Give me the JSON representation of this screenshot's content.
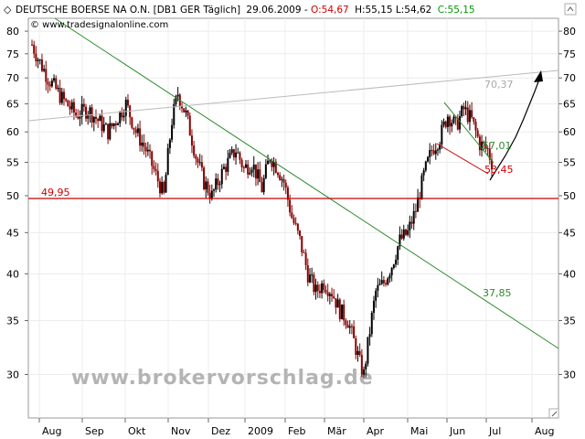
{
  "header": {
    "marker": "◇",
    "instrument": "DEUTSCHE BOERSE NA O.N. [DB1 GER  Täglich]",
    "date": "29.06.2009",
    "open": "O:54,67",
    "hl": "H:55,15 L:54,62",
    "close": "C:55,15",
    "copyright": "© www.tradesignalonline.com"
  },
  "watermark": "www.brokervorschlag.de",
  "colors": {
    "up": "#000000",
    "down": "#8b0000",
    "trend": "#2e8b2e",
    "support": "#cc0000",
    "watermark": "#b0b0b0",
    "open": "#cc0000",
    "close": "#009900"
  },
  "chart_data": {
    "type": "candlestick",
    "y_scale": "log",
    "ylim": [
      26.5,
      83
    ],
    "y_ticks": [
      30,
      35,
      40,
      45,
      50,
      55,
      60,
      65,
      70,
      75,
      80
    ],
    "x_labels": [
      "Aug",
      "Sep",
      "Okt",
      "Nov",
      "Dez",
      "2009",
      "Feb",
      "Mär",
      "Apr",
      "Mai",
      "Jun",
      "Jul",
      "Aug"
    ],
    "horizontal_line": {
      "value": 49.95,
      "label": "49,95"
    },
    "annotations": [
      {
        "label": "70,37",
        "color": "#aaaaaa"
      },
      {
        "label": "57,01",
        "color": "#2e8b2e"
      },
      {
        "label": "53,45",
        "color": "#cc0000"
      },
      {
        "label": "37,85",
        "color": "#2e8b2e"
      }
    ],
    "anchors": [
      [
        0,
        77
      ],
      [
        3,
        74
      ],
      [
        8,
        70
      ],
      [
        15,
        66
      ],
      [
        22,
        63
      ],
      [
        28,
        64
      ],
      [
        33,
        62
      ],
      [
        38,
        60
      ],
      [
        42,
        62
      ],
      [
        47,
        65
      ],
      [
        52,
        60
      ],
      [
        57,
        57
      ],
      [
        62,
        53
      ],
      [
        66,
        50
      ],
      [
        70,
        62
      ],
      [
        73,
        67
      ],
      [
        77,
        63
      ],
      [
        82,
        56
      ],
      [
        86,
        52
      ],
      [
        90,
        50
      ],
      [
        96,
        54
      ],
      [
        102,
        57
      ],
      [
        106,
        54
      ],
      [
        110,
        55
      ],
      [
        115,
        51
      ],
      [
        119,
        56
      ],
      [
        123,
        54
      ],
      [
        126,
        52
      ],
      [
        130,
        47
      ],
      [
        134,
        44
      ],
      [
        138,
        40
      ],
      [
        142,
        38
      ],
      [
        146,
        39
      ],
      [
        150,
        38
      ],
      [
        154,
        36
      ],
      [
        158,
        35
      ],
      [
        161,
        33
      ],
      [
        164,
        31
      ],
      [
        166,
        30
      ],
      [
        169,
        34
      ],
      [
        172,
        38
      ],
      [
        176,
        39
      ],
      [
        180,
        41
      ],
      [
        184,
        44
      ],
      [
        188,
        45
      ],
      [
        192,
        48
      ],
      [
        196,
        53
      ],
      [
        200,
        57
      ],
      [
        204,
        59
      ],
      [
        208,
        63
      ],
      [
        212,
        61
      ],
      [
        216,
        64
      ],
      [
        220,
        62
      ],
      [
        224,
        58
      ],
      [
        228,
        57
      ],
      [
        230,
        55
      ]
    ]
  }
}
